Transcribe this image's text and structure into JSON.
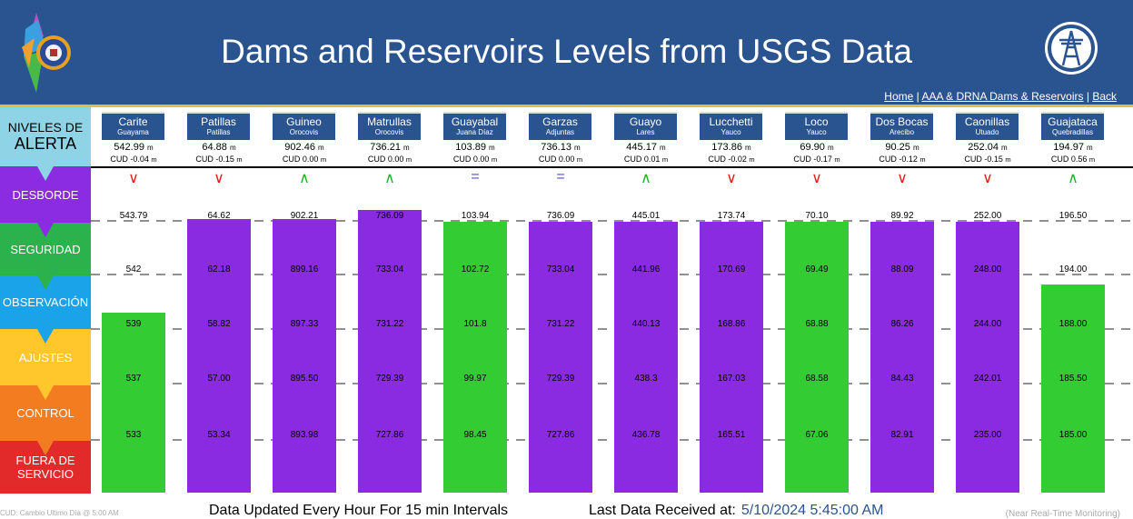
{
  "header": {
    "title": "Dams and Reservoirs Levels from USGS Data",
    "links": [
      "Home",
      "AAA & DRNA Dams & Reservoirs",
      "Back"
    ],
    "separator": "|"
  },
  "levels": [
    {
      "line1": "NIVELES DE",
      "line2": "ALERTA",
      "color": "#8fd3e6",
      "text_color": "#000000"
    },
    {
      "label": "DESBORDE",
      "color": "#8b2be2"
    },
    {
      "label": "SEGURIDAD",
      "color": "#2bb24c"
    },
    {
      "label": "OBSERVACIÓN",
      "color": "#1aa3e8"
    },
    {
      "label": "AJUSTES",
      "color": "#ffc72c"
    },
    {
      "label": "CONTROL",
      "color": "#f47c20"
    },
    {
      "label": "FUERA DE SERVICIO",
      "color": "#e22a2a"
    }
  ],
  "colors": {
    "purple": "#8a2be2",
    "green": "#33cc33",
    "header_bg": "#2a5490",
    "down": "#e21b1b",
    "up": "#19b32a",
    "equal": "#4d4de0"
  },
  "reservoirs": [
    {
      "name": "Carite",
      "location": "Guayama",
      "level": "542.99",
      "unit": "m",
      "cud": "CUD -0.04",
      "trend": "down",
      "color": "green",
      "fill": 0.63,
      "thresholds": [
        "543.79",
        "542",
        "539",
        "537",
        "533"
      ]
    },
    {
      "name": "Patillas",
      "location": "Patillas",
      "level": "64.88",
      "unit": "m",
      "cud": "CUD -0.15",
      "trend": "down",
      "color": "purple",
      "fill": 0.96,
      "thresholds": [
        "64.62",
        "62.18",
        "58.82",
        "57.00",
        "53.34"
      ]
    },
    {
      "name": "Guineo",
      "location": "Orocovis",
      "level": "902.46",
      "unit": "m",
      "cud": "CUD 0.00",
      "trend": "up",
      "color": "purple",
      "fill": 0.96,
      "thresholds": [
        "902.21",
        "899.16",
        "897.33",
        "895.50",
        "893.98"
      ]
    },
    {
      "name": "Matrullas",
      "location": "Orocovis",
      "level": "736.21",
      "unit": "m",
      "cud": "CUD 0.00",
      "trend": "up",
      "color": "purple",
      "fill": 0.99,
      "thresholds": [
        "736.09",
        "733.04",
        "731.22",
        "729.39",
        "727.86"
      ]
    },
    {
      "name": "Guayabal",
      "location": "Juana Díaz",
      "level": "103.89",
      "unit": "m",
      "cud": "CUD 0.00",
      "trend": "equal",
      "color": "green",
      "fill": 0.95,
      "thresholds": [
        "103.94",
        "102.72",
        "101.8",
        "99.97",
        "98.45"
      ]
    },
    {
      "name": "Garzas",
      "location": "Adjuntas",
      "level": "736.13",
      "unit": "m",
      "cud": "CUD 0.00",
      "trend": "equal",
      "color": "purple",
      "fill": 0.95,
      "thresholds": [
        "736.09",
        "733.04",
        "731.22",
        "729.39",
        "727.86"
      ]
    },
    {
      "name": "Guayo",
      "location": "Lares",
      "level": "445.17",
      "unit": "m",
      "cud": "CUD 0.01",
      "trend": "up",
      "color": "purple",
      "fill": 0.95,
      "thresholds": [
        "445.01",
        "441.96",
        "440.13",
        "438.3",
        "436.78"
      ]
    },
    {
      "name": "Lucchetti",
      "location": "Yauco",
      "level": "173.86",
      "unit": "m",
      "cud": "CUD -0.02",
      "trend": "down",
      "color": "purple",
      "fill": 0.95,
      "thresholds": [
        "173.74",
        "170.69",
        "168.86",
        "167.03",
        "165.51"
      ]
    },
    {
      "name": "Loco",
      "location": "Yauco",
      "level": "69.90",
      "unit": "m",
      "cud": "CUD -0.17",
      "trend": "down",
      "color": "green",
      "fill": 0.95,
      "thresholds": [
        "70.10",
        "69.49",
        "68.88",
        "68.58",
        "67.06"
      ]
    },
    {
      "name": "Dos Bocas",
      "location": "Arecibo",
      "level": "90.25",
      "unit": "m",
      "cud": "CUD -0.12",
      "trend": "down",
      "color": "purple",
      "fill": 0.95,
      "thresholds": [
        "89.92",
        "88.09",
        "86.26",
        "84.43",
        "82.91"
      ]
    },
    {
      "name": "Caonillas",
      "location": "Utuado",
      "level": "252.04",
      "unit": "m",
      "cud": "CUD -0.15",
      "trend": "down",
      "color": "purple",
      "fill": 0.95,
      "thresholds": [
        "252.00",
        "248.00",
        "244.00",
        "242.01",
        "235.00"
      ]
    },
    {
      "name": "Guajataca",
      "location": "Quebradillas",
      "level": "194.97",
      "unit": "m",
      "cud": "CUD 0.56",
      "trend": "up",
      "color": "green",
      "fill": 0.73,
      "thresholds": [
        "196.50",
        "194.00",
        "188.00",
        "185.50",
        "185.00"
      ]
    }
  ],
  "footer": {
    "left": "CUD: Cambio Ultimo Día @ 5:00 AM",
    "middle": "Data Updated Every Hour For 15 min Intervals",
    "last_label": "Last Data Received at:",
    "last_time": "5/10/2024 5:45:00 AM",
    "right": "(Near Real-Time Monitoring)"
  }
}
